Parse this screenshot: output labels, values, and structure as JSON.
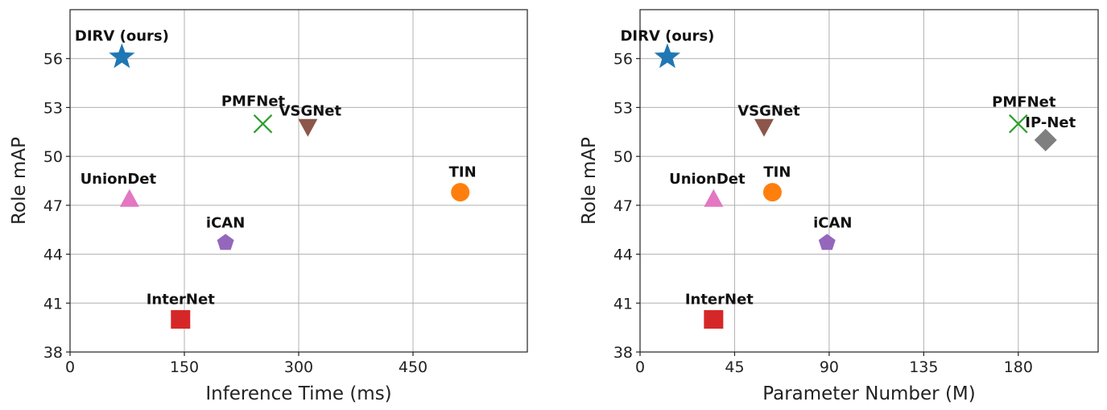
{
  "chart_data": [
    {
      "type": "scatter",
      "xlabel": "Inference Time (ms)",
      "ylabel": "Role mAP",
      "xlim": [
        0,
        600
      ],
      "ylim": [
        38,
        59
      ],
      "xticks": [
        0,
        150,
        300,
        450
      ],
      "yticks": [
        38,
        41,
        44,
        47,
        50,
        53,
        56
      ],
      "grid": true,
      "points": [
        {
          "label": "DIRV (ours)",
          "x": 68,
          "y": 56.1,
          "marker": "star",
          "color": "#1f77b4"
        },
        {
          "label": "PMFNet",
          "x": 253,
          "y": 52.0,
          "marker": "x",
          "color": "#2ca02c"
        },
        {
          "label": "VSGNet",
          "x": 312,
          "y": 51.8,
          "marker": "triangle-down",
          "color": "#8c564b"
        },
        {
          "label": "TIN",
          "x": 512,
          "y": 47.8,
          "marker": "circle",
          "color": "#ff7f0e"
        },
        {
          "label": "UnionDet",
          "x": 78,
          "y": 47.4,
          "marker": "triangle-up",
          "color": "#e377c2"
        },
        {
          "label": "iCAN",
          "x": 204,
          "y": 44.7,
          "marker": "pentagon",
          "color": "#9467bd"
        },
        {
          "label": "InterNet",
          "x": 145,
          "y": 40.0,
          "marker": "square",
          "color": "#d62728"
        }
      ]
    },
    {
      "type": "scatter",
      "xlabel": "Parameter Number (M)",
      "ylabel": "Role mAP",
      "xlim": [
        0,
        218
      ],
      "ylim": [
        38,
        59
      ],
      "xticks": [
        0,
        45,
        90,
        135,
        180
      ],
      "yticks": [
        38,
        41,
        44,
        47,
        50,
        53,
        56
      ],
      "grid": true,
      "points": [
        {
          "label": "DIRV (ours)",
          "x": 13,
          "y": 56.1,
          "marker": "star",
          "color": "#1f77b4"
        },
        {
          "label": "VSGNet",
          "x": 59,
          "y": 51.8,
          "marker": "triangle-down",
          "color": "#8c564b"
        },
        {
          "label": "PMFNet",
          "x": 180,
          "y": 52.0,
          "marker": "x",
          "color": "#2ca02c"
        },
        {
          "label": "IP-Net",
          "x": 193,
          "y": 51.0,
          "marker": "diamond",
          "color": "#7f7f7f"
        },
        {
          "label": "TIN",
          "x": 63,
          "y": 47.8,
          "marker": "circle",
          "color": "#ff7f0e"
        },
        {
          "label": "UnionDet",
          "x": 35,
          "y": 47.4,
          "marker": "triangle-up",
          "color": "#e377c2"
        },
        {
          "label": "iCAN",
          "x": 89,
          "y": 44.7,
          "marker": "pentagon",
          "color": "#9467bd"
        },
        {
          "label": "InterNet",
          "x": 35,
          "y": 40.0,
          "marker": "square",
          "color": "#d62728"
        }
      ]
    }
  ]
}
